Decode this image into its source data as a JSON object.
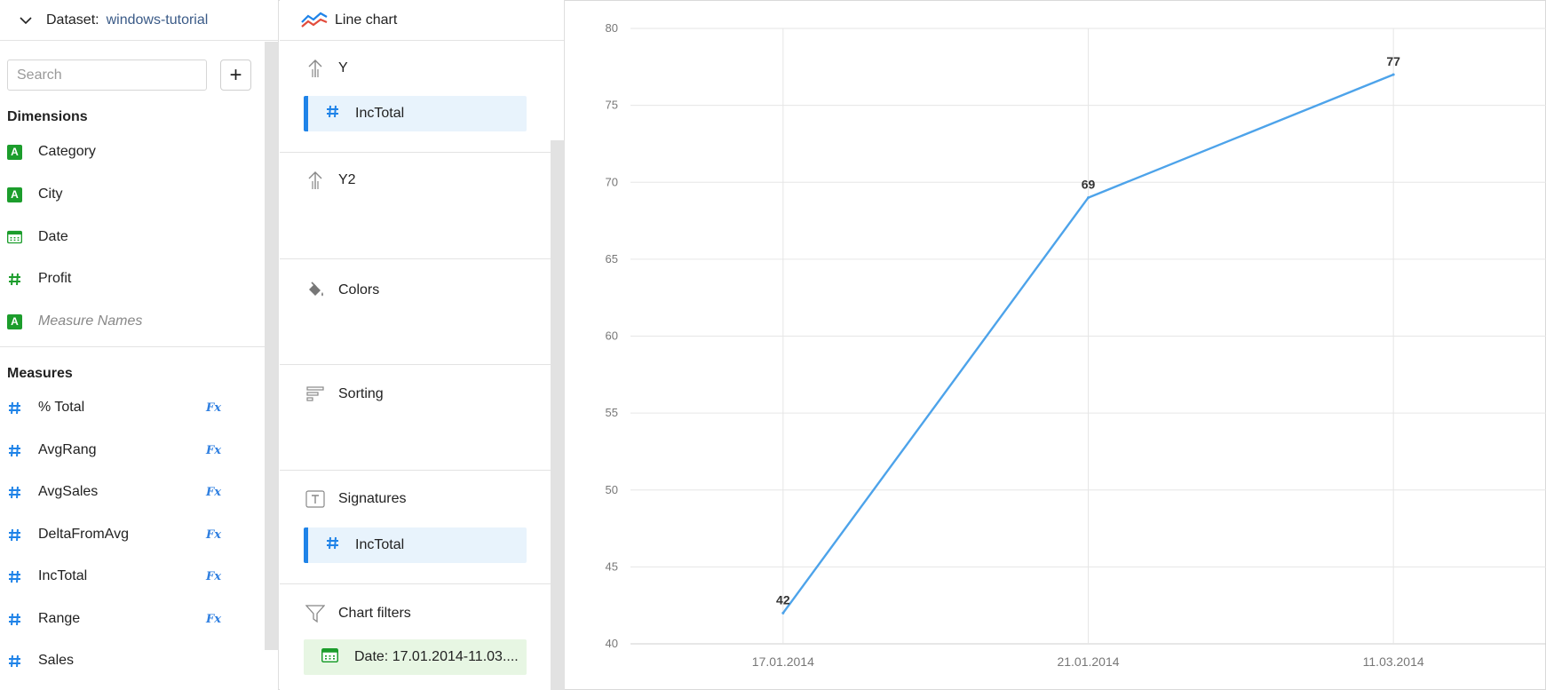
{
  "dataset": {
    "label": "Dataset:",
    "name": "windows-tutorial"
  },
  "search": {
    "placeholder": "Search"
  },
  "add_button": "+",
  "dimensions": {
    "title": "Dimensions",
    "items": [
      {
        "label": "Category",
        "type": "string",
        "icon": "string-type-icon"
      },
      {
        "label": "City",
        "type": "string",
        "icon": "string-type-icon"
      },
      {
        "label": "Date",
        "type": "date",
        "icon": "calendar-icon"
      },
      {
        "label": "Profit",
        "type": "number",
        "icon": "hash-icon"
      },
      {
        "label": "Measure Names",
        "type": "string",
        "icon": "string-type-icon",
        "italic": true
      }
    ]
  },
  "measures": {
    "title": "Measures",
    "items": [
      {
        "label": "% Total",
        "formula": "Fx"
      },
      {
        "label": "AvgRang",
        "formula": "Fx"
      },
      {
        "label": "AvgSales",
        "formula": "Fx"
      },
      {
        "label": "DeltaFromAvg",
        "formula": "Fx"
      },
      {
        "label": "IncTotal",
        "formula": "Fx"
      },
      {
        "label": "Range",
        "formula": "Fx"
      },
      {
        "label": "Sales",
        "formula": ""
      }
    ]
  },
  "visualization": {
    "type_label": "Line chart"
  },
  "sections": {
    "y": {
      "label": "Y",
      "field": "IncTotal"
    },
    "y2": {
      "label": "Y2"
    },
    "colors": {
      "label": "Colors"
    },
    "sorting": {
      "label": "Sorting"
    },
    "signatures": {
      "label": "Signatures",
      "field": "IncTotal"
    },
    "filters": {
      "label": "Chart filters",
      "filter": "Date: 17.01.2014-11.03...."
    }
  },
  "colors": {
    "accent": "#1f83e8",
    "line": "#4da3ea",
    "string_badge": "#1c9d2c",
    "filter_chip": "#e7f6e3"
  },
  "chart_data": {
    "type": "line",
    "categories": [
      "17.01.2014",
      "21.01.2014",
      "11.03.2014"
    ],
    "series": [
      {
        "values": [
          42,
          69,
          77
        ]
      }
    ],
    "yticks": [
      40,
      45,
      50,
      55,
      60,
      65,
      70,
      75,
      80
    ],
    "ylim": [
      40,
      80
    ],
    "grid": true,
    "data_labels": true
  }
}
